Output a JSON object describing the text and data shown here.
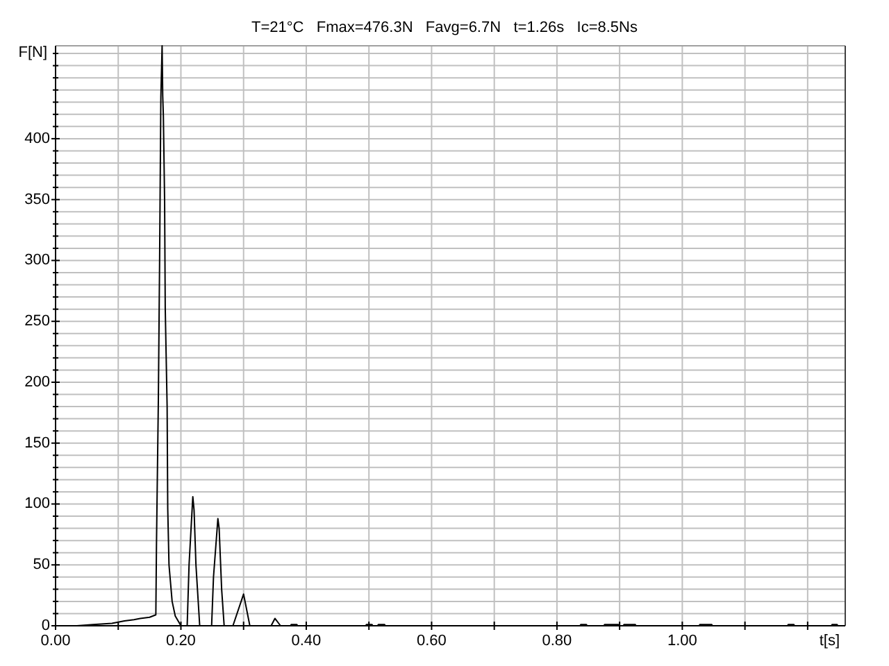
{
  "chart_data": {
    "type": "line",
    "title": "T=21°C   Fmax=476.3N   Favg=6.7N   t=1.26s   Ic=8.5Ns",
    "xlabel": "t[s]",
    "ylabel": "F[N]",
    "color": "#000000",
    "x": [
      0,
      0.034,
      0.06,
      0.09,
      0.11,
      0.125,
      0.135,
      0.15,
      0.16,
      0.161,
      0.164,
      0.166,
      0.168,
      0.17,
      0.171,
      0.172,
      0.174,
      0.175,
      0.178,
      0.179,
      0.181,
      0.186,
      0.191,
      0.2,
      0.21,
      0.213,
      0.219,
      0.221,
      0.224,
      0.23,
      0.249,
      0.252,
      0.259,
      0.261,
      0.265,
      0.269,
      0.283,
      0.3,
      0.31,
      0.344,
      0.35,
      0.359,
      0.375,
      0.376,
      0.385,
      0.386,
      0.495,
      0.496,
      0.505,
      0.506,
      0.514,
      0.515,
      0.525,
      0.526,
      0.837,
      0.838,
      0.847,
      0.848,
      0.875,
      0.876,
      0.898,
      0.899,
      0.906,
      0.907,
      0.925,
      0.926,
      1.027,
      1.028,
      1.047,
      1.048,
      1.168,
      1.169,
      1.178,
      1.179,
      1.238,
      1.239,
      1.247,
      1.248,
      1.26
    ],
    "values": [
      0,
      0,
      1,
      2,
      4,
      5,
      6,
      7,
      9,
      66,
      185,
      299,
      434,
      476.3,
      435,
      419,
      349,
      261,
      180,
      96,
      50,
      20,
      8,
      0,
      0,
      50,
      106,
      95,
      50,
      0,
      0,
      40,
      88,
      80,
      30,
      0,
      0,
      26,
      0,
      0,
      6,
      0,
      0,
      1,
      1,
      0,
      0,
      1,
      1,
      0,
      0,
      1,
      1,
      0,
      0,
      1,
      1,
      0,
      0,
      1,
      1,
      0,
      0,
      1,
      1,
      0,
      0,
      1,
      1,
      0,
      0,
      1,
      1,
      0,
      0,
      1,
      1,
      0,
      0
    ],
    "xlim": [
      0,
      1.26
    ],
    "ylim": [
      0,
      476.3
    ],
    "xticks": [
      {
        "value": 0,
        "label": "0.00"
      },
      {
        "value": 0.1,
        "label": null
      },
      {
        "value": 0.2,
        "label": "0.20"
      },
      {
        "value": 0.3,
        "label": null
      },
      {
        "value": 0.4,
        "label": "0.40"
      },
      {
        "value": 0.5,
        "label": null
      },
      {
        "value": 0.6,
        "label": "0.60"
      },
      {
        "value": 0.7,
        "label": null
      },
      {
        "value": 0.8,
        "label": "0.80"
      },
      {
        "value": 0.9,
        "label": null
      },
      {
        "value": 1.0,
        "label": "1.00"
      },
      {
        "value": 1.1,
        "label": null
      },
      {
        "value": 1.2,
        "label": null
      }
    ],
    "yticks": [
      0,
      {
        "value": 10,
        "label": null
      },
      {
        "value": 20,
        "label": null
      },
      {
        "value": 30,
        "label": null
      },
      {
        "value": 40,
        "label": null
      },
      50,
      {
        "value": 60,
        "label": null
      },
      {
        "value": 70,
        "label": null
      },
      {
        "value": 80,
        "label": null
      },
      {
        "value": 90,
        "label": null
      },
      100,
      {
        "value": 110,
        "label": null
      },
      {
        "value": 120,
        "label": null
      },
      {
        "value": 130,
        "label": null
      },
      {
        "value": 140,
        "label": null
      },
      150,
      {
        "value": 160,
        "label": null
      },
      {
        "value": 170,
        "label": null
      },
      {
        "value": 180,
        "label": null
      },
      {
        "value": 190,
        "label": null
      },
      200,
      {
        "value": 210,
        "label": null
      },
      {
        "value": 220,
        "label": null
      },
      {
        "value": 230,
        "label": null
      },
      {
        "value": 240,
        "label": null
      },
      250,
      {
        "value": 260,
        "label": null
      },
      {
        "value": 270,
        "label": null
      },
      {
        "value": 280,
        "label": null
      },
      {
        "value": 290,
        "label": null
      },
      300,
      {
        "value": 310,
        "label": null
      },
      {
        "value": 320,
        "label": null
      },
      {
        "value": 330,
        "label": null
      },
      {
        "value": 340,
        "label": null
      },
      350,
      {
        "value": 360,
        "label": null
      },
      {
        "value": 370,
        "label": null
      },
      {
        "value": 380,
        "label": null
      },
      {
        "value": 390,
        "label": null
      },
      400,
      {
        "value": 410,
        "label": null
      },
      {
        "value": 420,
        "label": null
      },
      {
        "value": 430,
        "label": null
      },
      {
        "value": 440,
        "label": null
      },
      {
        "value": 450,
        "label": null
      },
      {
        "value": 460,
        "label": null
      },
      {
        "value": 470,
        "label": null
      }
    ],
    "grid": true
  }
}
